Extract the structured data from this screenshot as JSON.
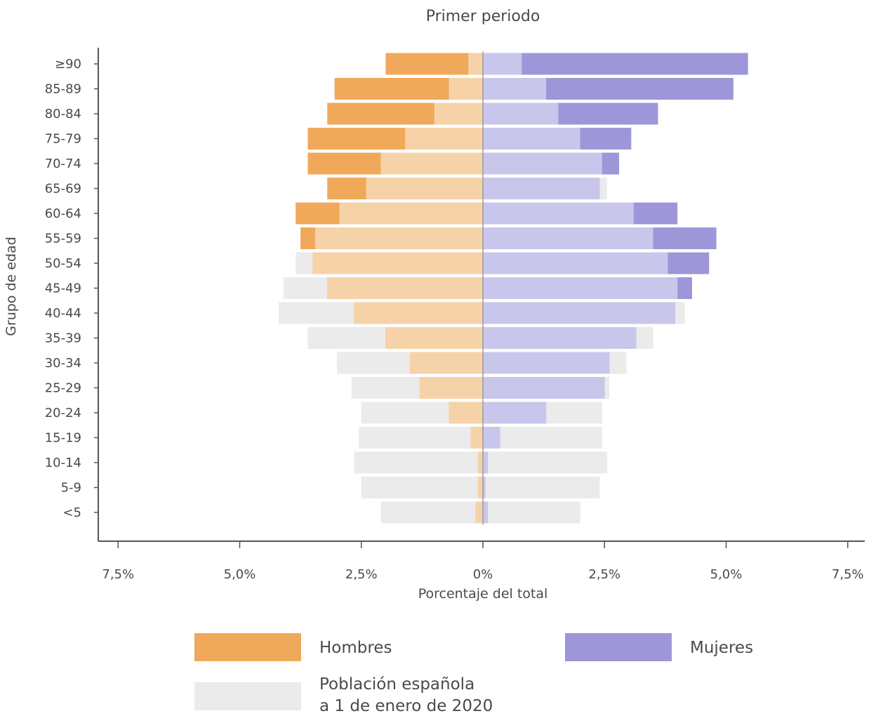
{
  "chart_data": {
    "type": "bar",
    "subtype": "population-pyramid",
    "title": "Primer periodo",
    "xlabel": "Porcentaje del total",
    "ylabel": "Grupo de edad",
    "xlim": [
      -7.5,
      7.5
    ],
    "x_ticks": [
      -7.5,
      -5.0,
      -2.5,
      0,
      2.5,
      5.0,
      7.5
    ],
    "x_tick_labels": [
      "7,5%",
      "5,0%",
      "2,5%",
      "0%",
      "2,5%",
      "5,0%",
      "7,5%"
    ],
    "categories": [
      "≥90",
      "85-89",
      "80-84",
      "75-79",
      "70-74",
      "65-69",
      "60-64",
      "55-59",
      "50-54",
      "45-49",
      "40-44",
      "35-39",
      "30-34",
      "25-29",
      "20-24",
      "15-19",
      "10-14",
      "5-9",
      "<5"
    ],
    "series": [
      {
        "name": "Hombres",
        "side": "left",
        "color": "#f0a85a",
        "values": [
          2.0,
          3.05,
          3.2,
          3.6,
          3.6,
          3.2,
          3.85,
          3.75,
          3.5,
          3.2,
          2.65,
          2.0,
          1.5,
          1.3,
          0.7,
          0.25,
          0.1,
          0.1,
          0.15
        ]
      },
      {
        "name": "Mujeres",
        "side": "right",
        "color": "#9d97d9",
        "values": [
          5.45,
          5.15,
          3.6,
          3.05,
          2.8,
          2.4,
          4.0,
          4.8,
          4.65,
          4.3,
          3.95,
          3.15,
          2.6,
          2.5,
          1.3,
          0.35,
          0.1,
          0.05,
          0.1
        ]
      },
      {
        "name": "Población española a 1 de enero de 2020",
        "color": "#ebebeb",
        "male": [
          0.3,
          0.7,
          1.0,
          1.6,
          2.1,
          2.4,
          2.95,
          3.45,
          3.85,
          4.1,
          4.2,
          3.6,
          3.0,
          2.7,
          2.5,
          2.55,
          2.65,
          2.5,
          2.1
        ],
        "female": [
          0.8,
          1.3,
          1.55,
          2.0,
          2.45,
          2.55,
          3.1,
          3.5,
          3.8,
          4.0,
          4.15,
          3.5,
          2.95,
          2.6,
          2.45,
          2.45,
          2.55,
          2.4,
          2.0
        ]
      }
    ],
    "grid": false,
    "legend_position": "bottom"
  },
  "legend": {
    "men_label": "Hombres",
    "women_label": "Mujeres",
    "ref_label_line1": "Población española",
    "ref_label_line2": "a 1 de enero de 2020"
  },
  "colors": {
    "men": "#f0a85a",
    "women": "#9d97d9",
    "men_ref_overlap": "#f6d2a9",
    "women_ref_overlap": "#c9c6ec",
    "reference": "#ebebeb",
    "axis": "#555555",
    "text": "#4a4a4a"
  }
}
